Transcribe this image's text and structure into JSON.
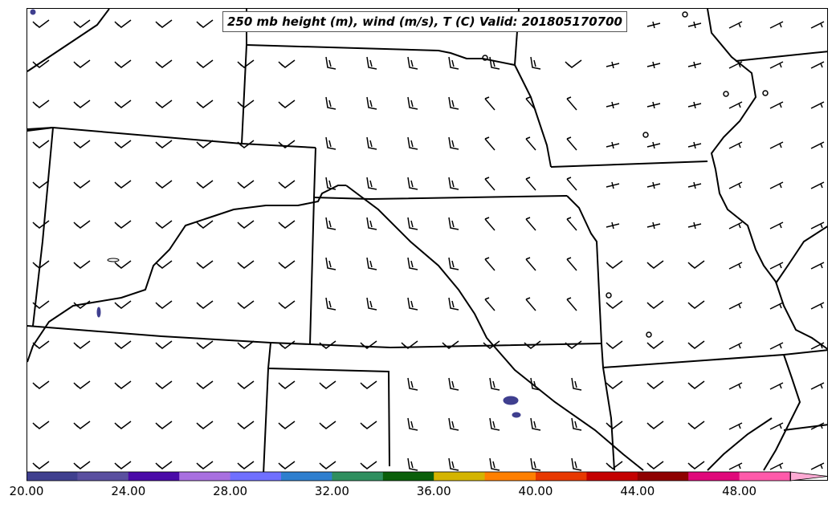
{
  "title": "250 mb height (m), wind (m/s), T (C) Valid: 201805170700",
  "colorbar": {
    "colors": [
      "#3f3f8f",
      "#5a4fa0",
      "#4a0aa8",
      "#a86fe0",
      "#6f6fff",
      "#2f7fcf",
      "#2f8f5f",
      "#0a5f0a",
      "#d4b400",
      "#ff7f00",
      "#e83800",
      "#c40000",
      "#8f0000",
      "#e0087a",
      "#ff5aaa",
      "#ffaad4"
    ],
    "tick_labels": [
      "20.00",
      "24.00",
      "28.00",
      "32.00",
      "36.00",
      "40.00",
      "44.00",
      "48.00"
    ]
  },
  "map": {
    "line_color": "#000000",
    "feature_color": "#3f3f8f"
  }
}
